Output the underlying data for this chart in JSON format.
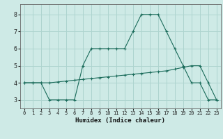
{
  "xlabel": "Humidex (Indice chaleur)",
  "background_color": "#ceeae6",
  "grid_color": "#aed4cf",
  "line_color": "#1a6b5a",
  "xlim": [
    -0.5,
    23.5
  ],
  "ylim": [
    2.5,
    8.6
  ],
  "xticks": [
    0,
    1,
    2,
    3,
    4,
    5,
    6,
    7,
    8,
    9,
    10,
    11,
    12,
    13,
    14,
    15,
    16,
    17,
    18,
    19,
    20,
    21,
    22,
    23
  ],
  "yticks": [
    3,
    4,
    5,
    6,
    7,
    8
  ],
  "series1_x": [
    0,
    1,
    2,
    3,
    4,
    5,
    6,
    7,
    8,
    9,
    10,
    11,
    12,
    13,
    14,
    15,
    16,
    17,
    18,
    19,
    20,
    21,
    22,
    23
  ],
  "series1_y": [
    4,
    4,
    4,
    3,
    3,
    3,
    3,
    5,
    6,
    6,
    6,
    6,
    6,
    7,
    8,
    8,
    8,
    7,
    6,
    5,
    4,
    4,
    3,
    3
  ],
  "series2_x": [
    0,
    1,
    2,
    3,
    4,
    5,
    6,
    7,
    8,
    9,
    10,
    11,
    12,
    13,
    14,
    15,
    16,
    17,
    18,
    19,
    20,
    21,
    22,
    23
  ],
  "series2_y": [
    4.0,
    4.0,
    4.0,
    4.0,
    4.05,
    4.1,
    4.15,
    4.2,
    4.25,
    4.3,
    4.35,
    4.4,
    4.45,
    4.5,
    4.55,
    4.6,
    4.65,
    4.7,
    4.8,
    4.9,
    5.0,
    5.0,
    4.0,
    3.0
  ]
}
